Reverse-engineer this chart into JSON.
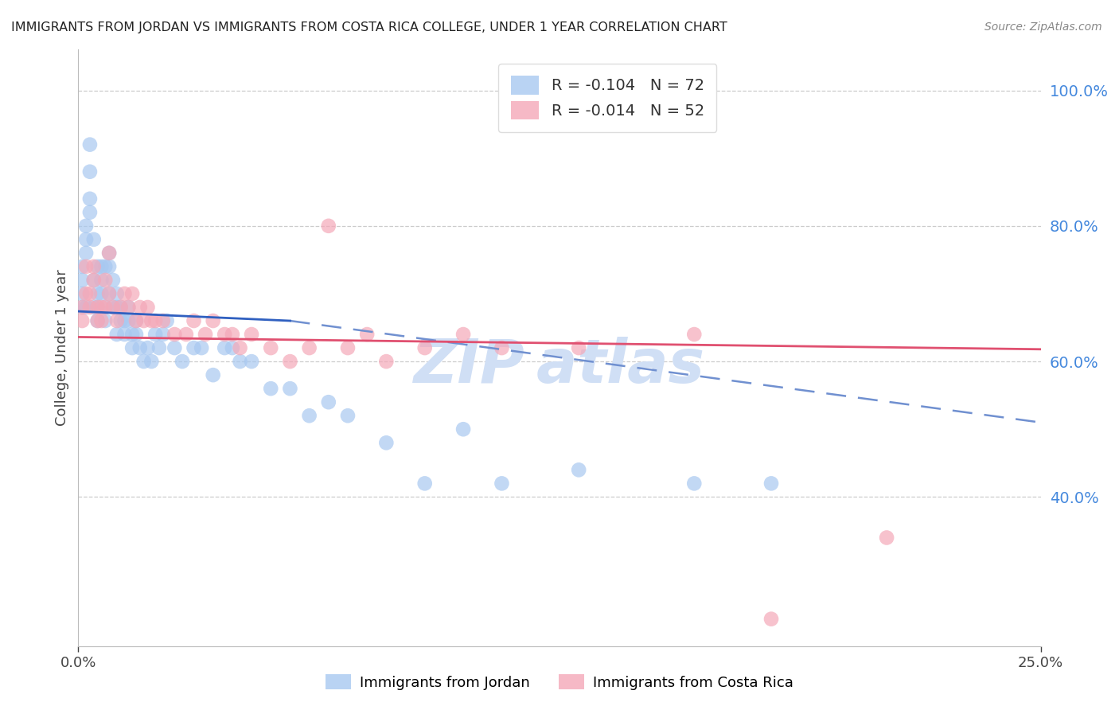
{
  "title": "IMMIGRANTS FROM JORDAN VS IMMIGRANTS FROM COSTA RICA COLLEGE, UNDER 1 YEAR CORRELATION CHART",
  "source": "Source: ZipAtlas.com",
  "ylabel": "College, Under 1 year",
  "jordan_R": -0.104,
  "jordan_N": 72,
  "costarica_R": -0.014,
  "costarica_N": 52,
  "legend_label_jordan": "Immigrants from Jordan",
  "legend_label_costarica": "Immigrants from Costa Rica",
  "jordan_color": "#a8c8f0",
  "costarica_color": "#f4a8b8",
  "trend_jordan_solid_color": "#3060c0",
  "trend_jordan_dash_color": "#7090d0",
  "trend_costarica_color": "#e05070",
  "xlim": [
    0.0,
    0.25
  ],
  "ylim": [
    0.18,
    1.06
  ],
  "background_color": "#ffffff",
  "grid_color": "#cccccc",
  "right_axis_color": "#4488dd",
  "watermark_text": "ZIP atlas",
  "watermark_color": "#d0dff5",
  "watermark_fontsize": 55,
  "jordan_x": [
    0.001,
    0.001,
    0.001,
    0.001,
    0.002,
    0.002,
    0.002,
    0.002,
    0.003,
    0.003,
    0.003,
    0.003,
    0.004,
    0.004,
    0.004,
    0.005,
    0.005,
    0.005,
    0.005,
    0.006,
    0.006,
    0.006,
    0.007,
    0.007,
    0.007,
    0.008,
    0.008,
    0.008,
    0.009,
    0.009,
    0.01,
    0.01,
    0.01,
    0.011,
    0.011,
    0.012,
    0.012,
    0.013,
    0.013,
    0.014,
    0.014,
    0.015,
    0.015,
    0.016,
    0.017,
    0.018,
    0.019,
    0.02,
    0.021,
    0.022,
    0.023,
    0.025,
    0.027,
    0.03,
    0.032,
    0.035,
    0.038,
    0.04,
    0.042,
    0.045,
    0.05,
    0.055,
    0.06,
    0.065,
    0.07,
    0.08,
    0.09,
    0.1,
    0.11,
    0.13,
    0.16,
    0.18
  ],
  "jordan_y": [
    0.68,
    0.72,
    0.74,
    0.7,
    0.76,
    0.78,
    0.8,
    0.68,
    0.82,
    0.84,
    0.88,
    0.92,
    0.68,
    0.72,
    0.78,
    0.7,
    0.74,
    0.66,
    0.68,
    0.7,
    0.74,
    0.72,
    0.68,
    0.74,
    0.66,
    0.7,
    0.74,
    0.76,
    0.68,
    0.72,
    0.68,
    0.64,
    0.7,
    0.66,
    0.68,
    0.66,
    0.64,
    0.68,
    0.66,
    0.64,
    0.62,
    0.66,
    0.64,
    0.62,
    0.6,
    0.62,
    0.6,
    0.64,
    0.62,
    0.64,
    0.66,
    0.62,
    0.6,
    0.62,
    0.62,
    0.58,
    0.62,
    0.62,
    0.6,
    0.6,
    0.56,
    0.56,
    0.52,
    0.54,
    0.52,
    0.48,
    0.42,
    0.5,
    0.42,
    0.44,
    0.42,
    0.42
  ],
  "costarica_x": [
    0.001,
    0.001,
    0.002,
    0.002,
    0.003,
    0.003,
    0.004,
    0.004,
    0.005,
    0.005,
    0.006,
    0.006,
    0.007,
    0.007,
    0.008,
    0.008,
    0.009,
    0.01,
    0.011,
    0.012,
    0.013,
    0.014,
    0.015,
    0.016,
    0.017,
    0.018,
    0.019,
    0.02,
    0.022,
    0.025,
    0.028,
    0.03,
    0.033,
    0.035,
    0.038,
    0.04,
    0.042,
    0.045,
    0.05,
    0.055,
    0.06,
    0.065,
    0.07,
    0.075,
    0.08,
    0.09,
    0.1,
    0.11,
    0.13,
    0.16,
    0.18,
    0.21
  ],
  "costarica_y": [
    0.68,
    0.66,
    0.74,
    0.7,
    0.7,
    0.68,
    0.72,
    0.74,
    0.68,
    0.66,
    0.68,
    0.66,
    0.72,
    0.68,
    0.76,
    0.7,
    0.68,
    0.66,
    0.68,
    0.7,
    0.68,
    0.7,
    0.66,
    0.68,
    0.66,
    0.68,
    0.66,
    0.66,
    0.66,
    0.64,
    0.64,
    0.66,
    0.64,
    0.66,
    0.64,
    0.64,
    0.62,
    0.64,
    0.62,
    0.6,
    0.62,
    0.8,
    0.62,
    0.64,
    0.6,
    0.62,
    0.64,
    0.62,
    0.62,
    0.64,
    0.22,
    0.34
  ],
  "jordan_line_x0": 0.0,
  "jordan_line_y0": 0.674,
  "jordan_line_solid_x1": 0.055,
  "jordan_line_solid_y1": 0.66,
  "jordan_line_dash_x1": 0.25,
  "jordan_line_dash_y1": 0.51,
  "costarica_line_x0": 0.0,
  "costarica_line_y0": 0.636,
  "costarica_line_x1": 0.25,
  "costarica_line_y1": 0.618
}
